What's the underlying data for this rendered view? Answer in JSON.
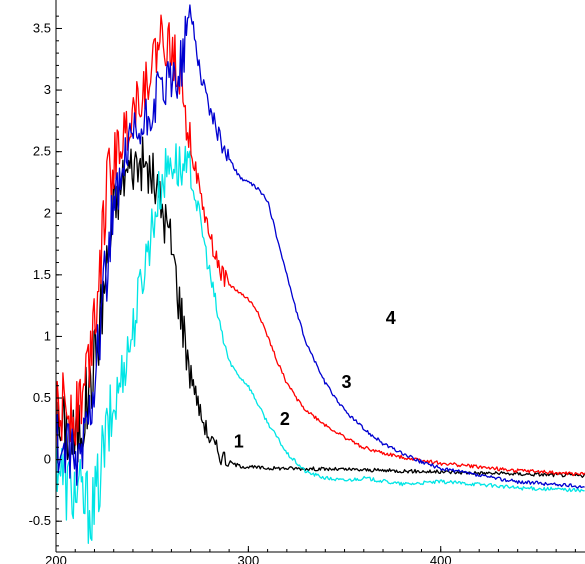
{
  "chart_data": {
    "type": "line",
    "title": "",
    "xlabel": "",
    "ylabel": "",
    "xlim": [
      200,
      475
    ],
    "ylim": [
      -0.75,
      3.65
    ],
    "grid": false,
    "x_ticks": [
      200,
      300,
      400
    ],
    "x_tick_labels": [
      "200",
      "300",
      "400"
    ],
    "y_ticks": [
      -0.5,
      0,
      0.5,
      1,
      1.5,
      2,
      2.5,
      3,
      3.5
    ],
    "y_tick_labels": [
      "-0.5",
      "0",
      "0.5",
      "1",
      "1.5",
      "2",
      "2.5",
      "3",
      "3.5"
    ],
    "series": [
      {
        "name": "1",
        "color": "#000000",
        "label_at": [
          295,
          0.1
        ],
        "points": [
          [
            200,
            0.2
          ],
          [
            205,
            0.25
          ],
          [
            210,
            0.15
          ],
          [
            215,
            0.4
          ],
          [
            220,
            0.8
          ],
          [
            225,
            1.4
          ],
          [
            230,
            2.0
          ],
          [
            235,
            2.3
          ],
          [
            240,
            2.4
          ],
          [
            245,
            2.4
          ],
          [
            250,
            2.3
          ],
          [
            255,
            2.05
          ],
          [
            260,
            1.75
          ],
          [
            265,
            1.2
          ],
          [
            270,
            0.72
          ],
          [
            275,
            0.38
          ],
          [
            280,
            0.17
          ],
          [
            285,
            0.05
          ],
          [
            290,
            -0.02
          ],
          [
            295,
            -0.05
          ],
          [
            300,
            -0.06
          ],
          [
            310,
            -0.07
          ],
          [
            320,
            -0.07
          ],
          [
            350,
            -0.08
          ],
          [
            400,
            -0.1
          ],
          [
            450,
            -0.12
          ],
          [
            475,
            -0.13
          ]
        ]
      },
      {
        "name": "2",
        "color": "#00e5e5",
        "label_at": [
          319,
          0.28
        ],
        "points": [
          [
            200,
            0.05
          ],
          [
            205,
            -0.2
          ],
          [
            210,
            -0.25
          ],
          [
            215,
            -0.35
          ],
          [
            220,
            -0.4
          ],
          [
            225,
            0.1
          ],
          [
            230,
            0.4
          ],
          [
            235,
            0.75
          ],
          [
            240,
            1.05
          ],
          [
            245,
            1.5
          ],
          [
            250,
            1.9
          ],
          [
            255,
            2.25
          ],
          [
            260,
            2.45
          ],
          [
            265,
            2.35
          ],
          [
            270,
            2.3
          ],
          [
            275,
            1.95
          ],
          [
            280,
            1.5
          ],
          [
            285,
            1.1
          ],
          [
            290,
            0.8
          ],
          [
            295,
            0.68
          ],
          [
            300,
            0.6
          ],
          [
            305,
            0.45
          ],
          [
            310,
            0.3
          ],
          [
            315,
            0.18
          ],
          [
            320,
            0.05
          ],
          [
            330,
            -0.1
          ],
          [
            340,
            -0.15
          ],
          [
            350,
            -0.17
          ],
          [
            360,
            -0.15
          ],
          [
            380,
            -0.2
          ],
          [
            400,
            -0.18
          ],
          [
            420,
            -0.2
          ],
          [
            440,
            -0.23
          ],
          [
            475,
            -0.25
          ]
        ]
      },
      {
        "name": "3",
        "color": "#ff0000",
        "label_at": [
          351,
          0.58
        ],
        "points": [
          [
            200,
            0.3
          ],
          [
            205,
            0.45
          ],
          [
            210,
            0.4
          ],
          [
            215,
            0.6
          ],
          [
            220,
            1.2
          ],
          [
            225,
            2.0
          ],
          [
            230,
            2.45
          ],
          [
            235,
            2.6
          ],
          [
            240,
            2.85
          ],
          [
            245,
            3.0
          ],
          [
            250,
            3.2
          ],
          [
            255,
            3.45
          ],
          [
            260,
            3.3
          ],
          [
            265,
            3.15
          ],
          [
            270,
            2.55
          ],
          [
            275,
            2.15
          ],
          [
            280,
            1.8
          ],
          [
            285,
            1.55
          ],
          [
            290,
            1.42
          ],
          [
            295,
            1.36
          ],
          [
            300,
            1.3
          ],
          [
            305,
            1.2
          ],
          [
            310,
            1.0
          ],
          [
            315,
            0.8
          ],
          [
            320,
            0.62
          ],
          [
            325,
            0.5
          ],
          [
            330,
            0.4
          ],
          [
            340,
            0.28
          ],
          [
            350,
            0.18
          ],
          [
            360,
            0.1
          ],
          [
            370,
            0.05
          ],
          [
            380,
            0.02
          ],
          [
            400,
            -0.03
          ],
          [
            420,
            -0.06
          ],
          [
            440,
            -0.09
          ],
          [
            475,
            -0.12
          ]
        ]
      },
      {
        "name": "4",
        "color": "#0000d0",
        "label_at": [
          374,
          1.1
        ],
        "points": [
          [
            200,
            0.1
          ],
          [
            205,
            0.05
          ],
          [
            210,
            -0.1
          ],
          [
            215,
            0.2
          ],
          [
            220,
            0.7
          ],
          [
            225,
            1.4
          ],
          [
            230,
            2.0
          ],
          [
            235,
            2.35
          ],
          [
            240,
            2.6
          ],
          [
            245,
            2.65
          ],
          [
            250,
            2.85
          ],
          [
            255,
            3.0
          ],
          [
            260,
            3.05
          ],
          [
            265,
            3.2
          ],
          [
            270,
            3.65
          ],
          [
            275,
            3.15
          ],
          [
            280,
            2.85
          ],
          [
            285,
            2.6
          ],
          [
            290,
            2.45
          ],
          [
            295,
            2.3
          ],
          [
            300,
            2.25
          ],
          [
            305,
            2.2
          ],
          [
            310,
            2.1
          ],
          [
            315,
            1.8
          ],
          [
            320,
            1.5
          ],
          [
            325,
            1.2
          ],
          [
            330,
            0.95
          ],
          [
            340,
            0.62
          ],
          [
            350,
            0.4
          ],
          [
            360,
            0.25
          ],
          [
            370,
            0.13
          ],
          [
            380,
            0.05
          ],
          [
            390,
            -0.02
          ],
          [
            400,
            -0.07
          ],
          [
            420,
            -0.13
          ],
          [
            440,
            -0.18
          ],
          [
            475,
            -0.22
          ]
        ]
      }
    ]
  }
}
